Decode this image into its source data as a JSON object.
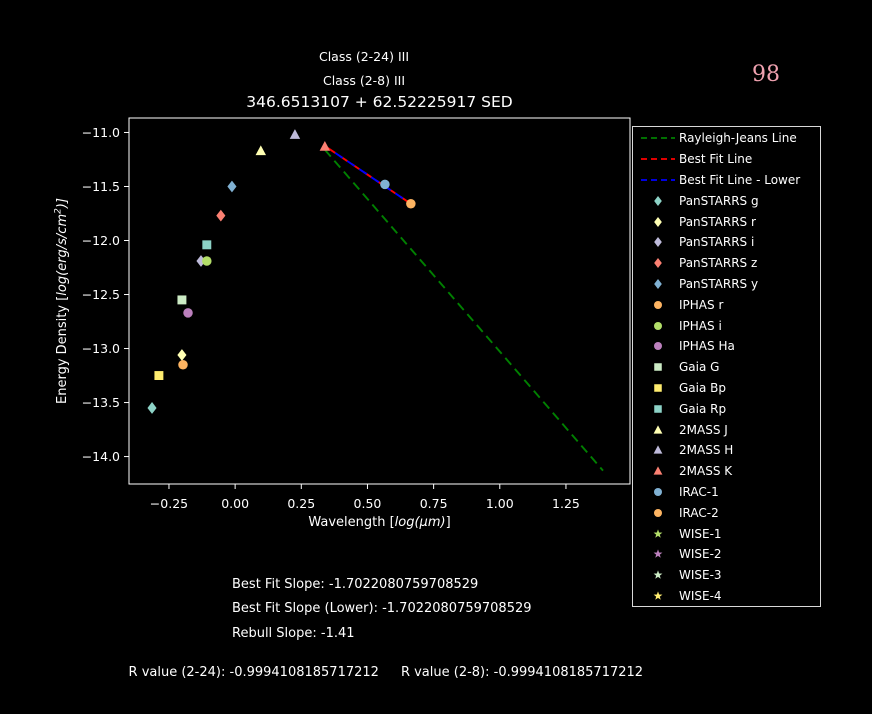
{
  "page": {
    "number": "98",
    "number_color": "#f0a2b0",
    "background": "#000000"
  },
  "header": {
    "class_line_1": "Class (2-24) III",
    "class_line_2": "Class (2-8) III",
    "title": "346.6513107 + 62.52225917 SED"
  },
  "axes": {
    "xlabel": {
      "prefix": "Wavelength [",
      "math": "log(μm)",
      "suffix": "]"
    },
    "ylabel": {
      "prefix": "Energy Density [",
      "math": "log(erg/s/cm",
      "sup": "2",
      "suffix": ")]"
    }
  },
  "chart_data": {
    "type": "scatter",
    "title": "346.6513107 + 62.52225917 SED",
    "xlabel": "Wavelength [log(μm)]",
    "ylabel": "Energy Density [log(erg/s/cm²)]",
    "xlim": [
      -0.401,
      1.492
    ],
    "ylim": [
      -14.254,
      -10.866
    ],
    "xticks": [
      -0.25,
      0,
      0.25,
      0.5,
      0.75,
      1,
      1.25
    ],
    "yticks": [
      -11,
      -11.5,
      -12,
      -12.5,
      -13,
      -13.5,
      -14
    ],
    "grid": false,
    "legend_position": "right",
    "axis_color": "#ffffff",
    "series": [
      {
        "name": "PanSTARRS g",
        "marker": "diamond",
        "color": "#8dd3c7",
        "points": [
          [
            -0.314,
            -13.55
          ]
        ]
      },
      {
        "name": "PanSTARRS r",
        "marker": "diamond",
        "color": "#ffffb3",
        "points": [
          [
            -0.201,
            -13.06
          ]
        ]
      },
      {
        "name": "PanSTARRS i",
        "marker": "diamond",
        "color": "#bebada",
        "points": [
          [
            -0.129,
            -12.19
          ]
        ]
      },
      {
        "name": "PanSTARRS z",
        "marker": "diamond",
        "color": "#fb8072",
        "points": [
          [
            -0.054,
            -11.77
          ]
        ]
      },
      {
        "name": "PanSTARRS y",
        "marker": "diamond",
        "color": "#80b1d3",
        "points": [
          [
            -0.012,
            -11.5
          ]
        ]
      },
      {
        "name": "IPHAS r",
        "marker": "circle",
        "color": "#fdb462",
        "points": [
          [
            -0.197,
            -13.15
          ]
        ]
      },
      {
        "name": "IPHAS i",
        "marker": "circle",
        "color": "#b3de69",
        "points": [
          [
            -0.107,
            -12.19
          ]
        ]
      },
      {
        "name": "IPHAS Ha",
        "marker": "circle",
        "color": "#bc80bd",
        "points": [
          [
            -0.178,
            -12.67
          ]
        ]
      },
      {
        "name": "Gaia G",
        "marker": "square",
        "color": "#ccebc5",
        "points": [
          [
            -0.201,
            -12.55
          ]
        ]
      },
      {
        "name": "Gaia Bp",
        "marker": "square",
        "color": "#ffed6f",
        "points": [
          [
            -0.288,
            -13.25
          ]
        ]
      },
      {
        "name": "Gaia Rp",
        "marker": "square",
        "color": "#8dd3c7",
        "points": [
          [
            -0.107,
            -12.04
          ]
        ]
      },
      {
        "name": "2MASS J",
        "marker": "triangle",
        "color": "#ffffb3",
        "points": [
          [
            0.097,
            -11.17
          ]
        ]
      },
      {
        "name": "2MASS H",
        "marker": "triangle",
        "color": "#bebada",
        "points": [
          [
            0.226,
            -11.02
          ]
        ]
      },
      {
        "name": "2MASS K",
        "marker": "triangle",
        "color": "#fb8072",
        "points": [
          [
            0.339,
            -11.13
          ]
        ]
      },
      {
        "name": "IRAC-1",
        "marker": "circle",
        "color": "#80b1d3",
        "points": [
          [
            0.566,
            -11.48
          ]
        ]
      },
      {
        "name": "IRAC-2",
        "marker": "circle",
        "color": "#fdb462",
        "points": [
          [
            0.664,
            -11.66
          ]
        ]
      },
      {
        "name": "WISE-1",
        "marker": "star",
        "color": "#b3de69",
        "points": []
      },
      {
        "name": "WISE-2",
        "marker": "star",
        "color": "#bc80bd",
        "points": []
      },
      {
        "name": "WISE-3",
        "marker": "star",
        "color": "#ccebc5",
        "points": []
      },
      {
        "name": "WISE-4",
        "marker": "star",
        "color": "#ffed6f",
        "points": []
      }
    ],
    "lines": [
      {
        "name": "Rayleigh-Jeans Line",
        "color": "#008000",
        "style": "dashed",
        "x": [
          0.339,
          1.39
        ],
        "y": [
          -11.16,
          -14.13
        ]
      },
      {
        "name": "Best Fit Line",
        "color": "#ff0000",
        "style": "dashed",
        "x": [
          0.35,
          0.664
        ],
        "y": [
          -11.143,
          -11.66
        ]
      },
      {
        "name": "Best Fit Line - Lower",
        "color": "#0000ff",
        "style": "dashed",
        "x": [
          0.378,
          0.664
        ],
        "y": [
          -11.189,
          -11.66
        ]
      }
    ]
  },
  "legend": {
    "items": [
      {
        "label": "Rayleigh-Jeans Line",
        "type": "line",
        "color": "#008000"
      },
      {
        "label": "Best Fit Line",
        "type": "line",
        "color": "#ff0000"
      },
      {
        "label": "Best Fit Line - Lower",
        "type": "line",
        "color": "#0000ff"
      },
      {
        "label": "PanSTARRS g",
        "type": "diamond",
        "color": "#8dd3c7"
      },
      {
        "label": "PanSTARRS r",
        "type": "diamond",
        "color": "#ffffb3"
      },
      {
        "label": "PanSTARRS i",
        "type": "diamond",
        "color": "#bebada"
      },
      {
        "label": "PanSTARRS z",
        "type": "diamond",
        "color": "#fb8072"
      },
      {
        "label": "PanSTARRS y",
        "type": "diamond",
        "color": "#80b1d3"
      },
      {
        "label": "IPHAS r",
        "type": "circle",
        "color": "#fdb462"
      },
      {
        "label": "IPHAS i",
        "type": "circle",
        "color": "#b3de69"
      },
      {
        "label": "IPHAS Ha",
        "type": "circle",
        "color": "#bc80bd"
      },
      {
        "label": "Gaia G",
        "type": "square",
        "color": "#ccebc5"
      },
      {
        "label": "Gaia Bp",
        "type": "square",
        "color": "#ffed6f"
      },
      {
        "label": "Gaia Rp",
        "type": "square",
        "color": "#8dd3c7"
      },
      {
        "label": "2MASS J",
        "type": "triangle",
        "color": "#ffffb3"
      },
      {
        "label": "2MASS H",
        "type": "triangle",
        "color": "#bebada"
      },
      {
        "label": "2MASS K",
        "type": "triangle",
        "color": "#fb8072"
      },
      {
        "label": "IRAC-1",
        "type": "circle",
        "color": "#80b1d3"
      },
      {
        "label": "IRAC-2",
        "type": "circle",
        "color": "#fdb462"
      },
      {
        "label": "WISE-1",
        "type": "star",
        "color": "#b3de69"
      },
      {
        "label": "WISE-2",
        "type": "star",
        "color": "#bc80bd"
      },
      {
        "label": "WISE-3",
        "type": "star",
        "color": "#ccebc5"
      },
      {
        "label": "WISE-4",
        "type": "star",
        "color": "#ffed6f"
      }
    ]
  },
  "stats": {
    "best_fit_slope": "Best Fit Slope: -1.7022080759708529",
    "best_fit_slope_lower": "Best Fit Slope (Lower): -1.7022080759708529",
    "rebull_slope": "Rebull Slope: -1.41",
    "r_value_2_24": "R value (2-24): -0.9994108185717212",
    "r_value_2_8": "R value (2-8): -0.9994108185717212"
  }
}
